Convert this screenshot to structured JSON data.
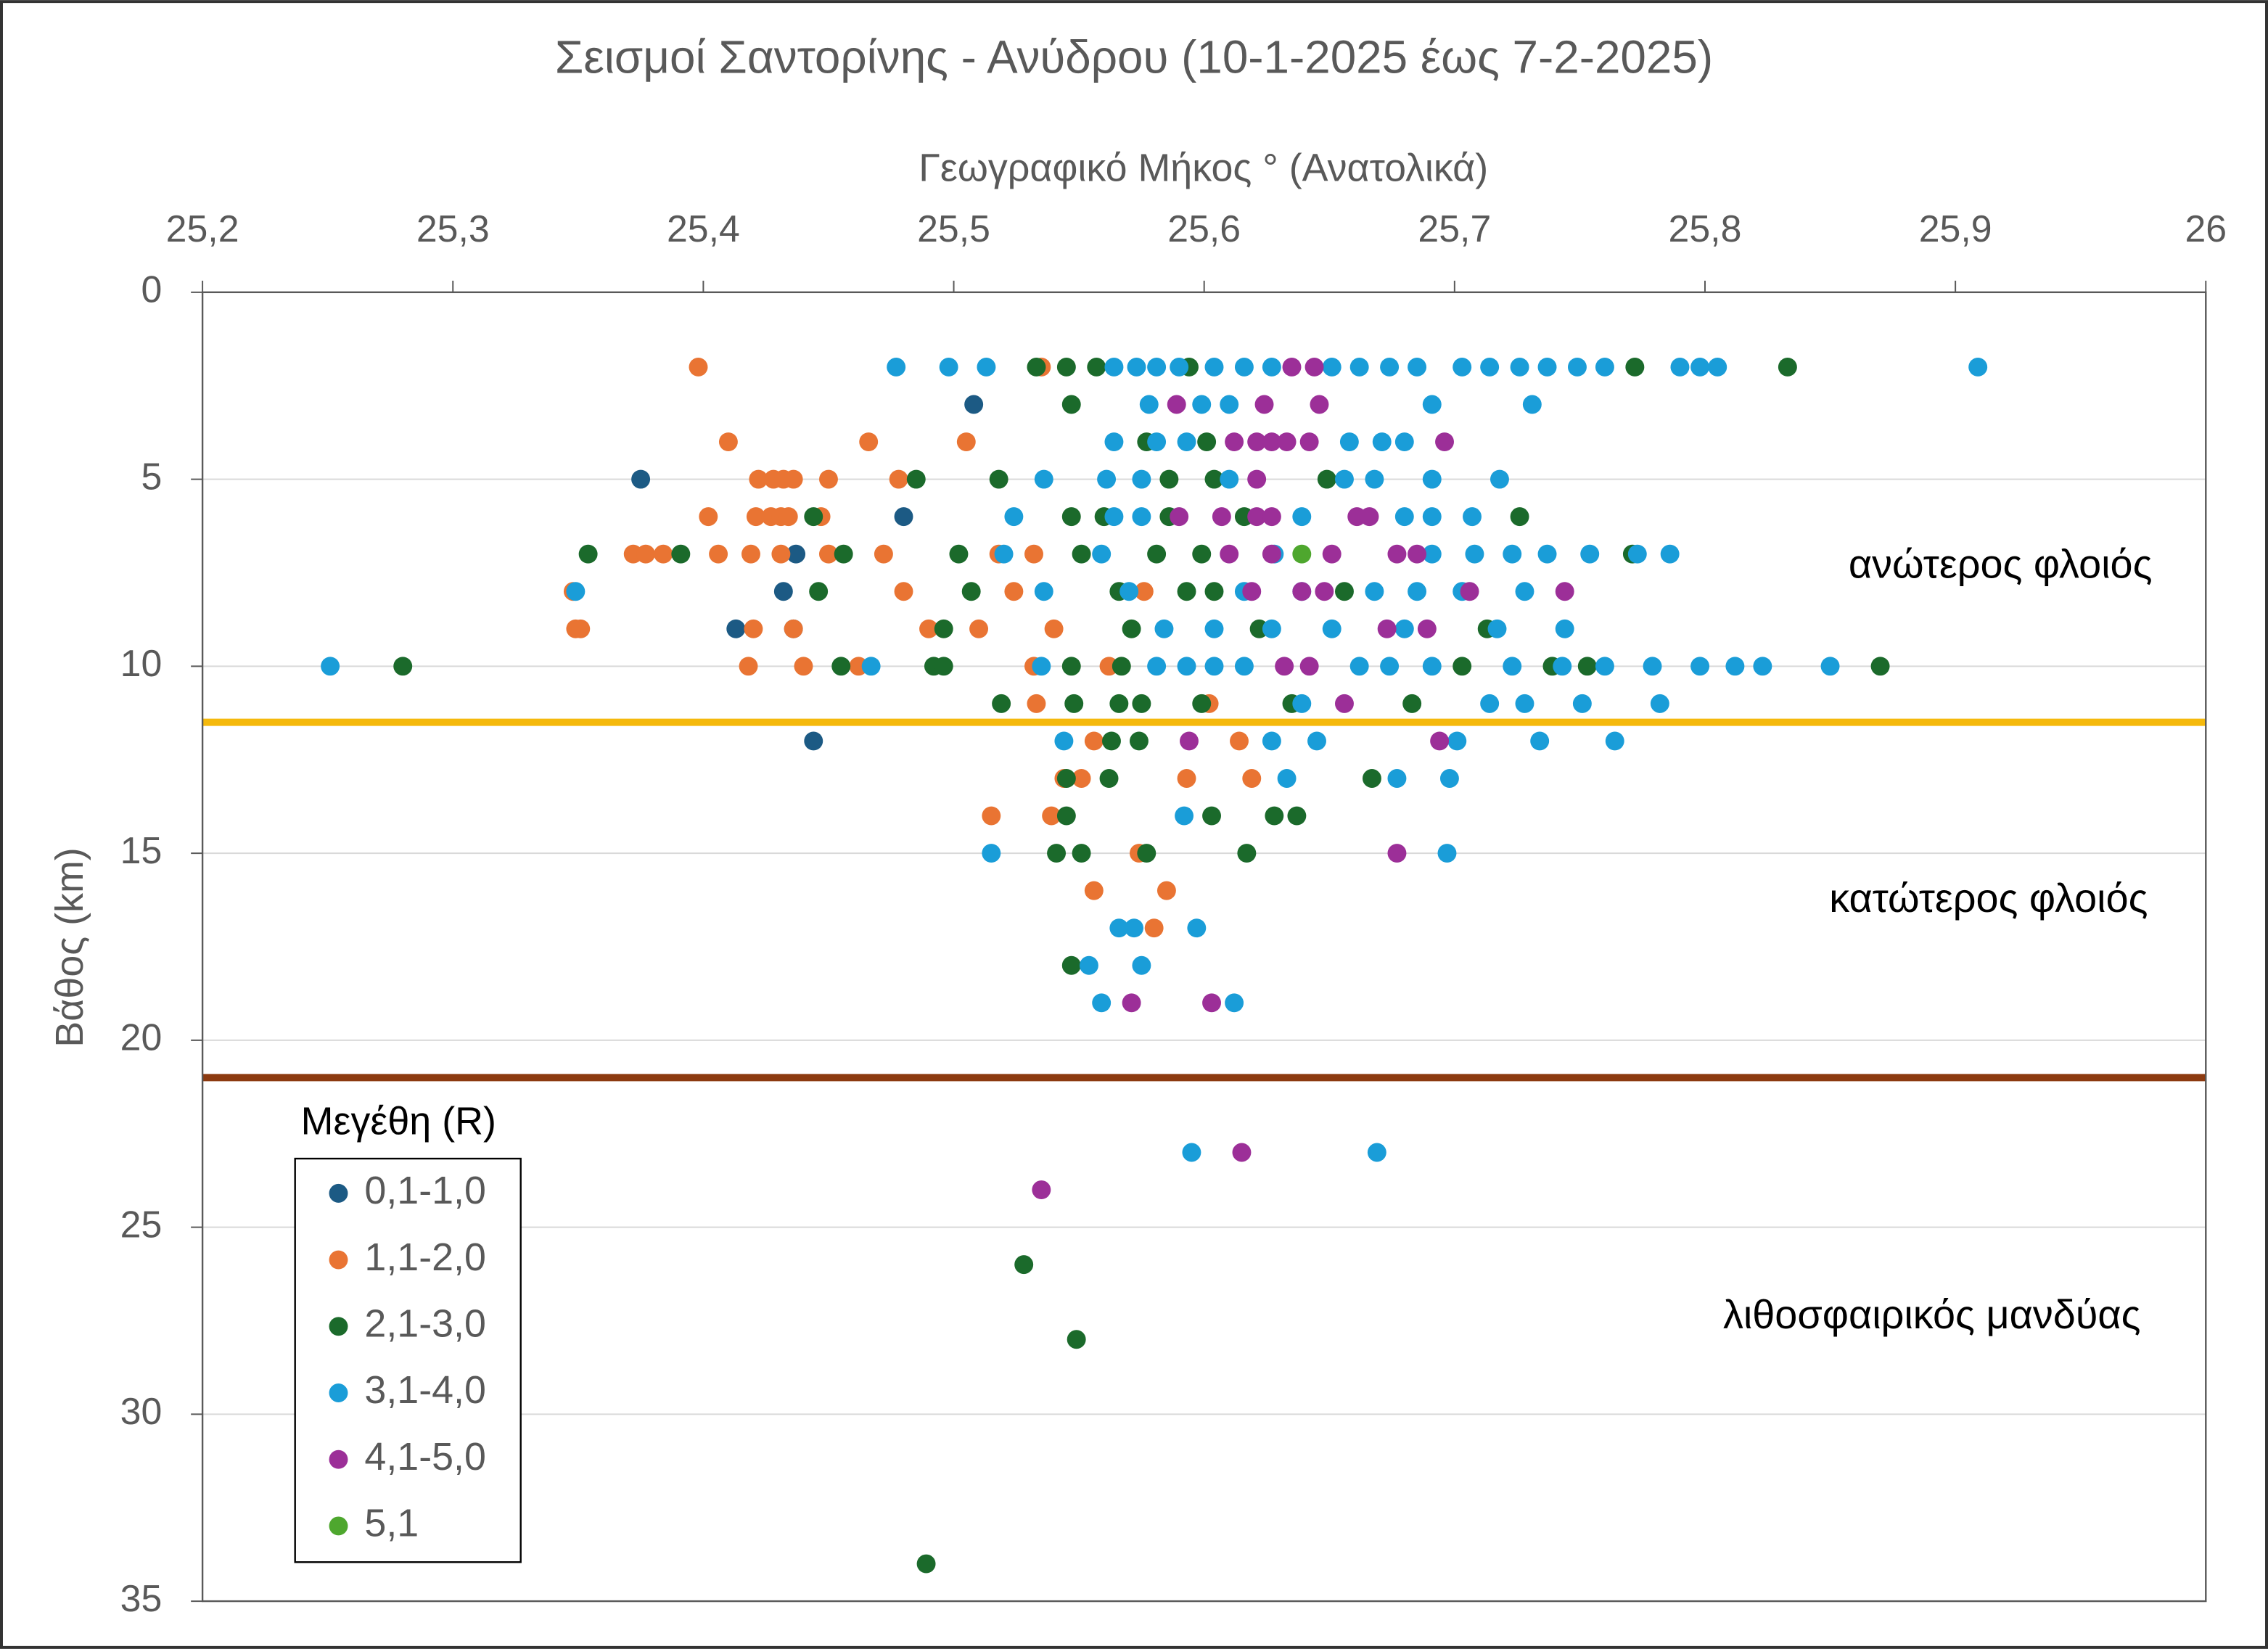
{
  "chart_data": {
    "type": "scatter",
    "title": "Σεισμοί Σαντορίνης - Ανύδρου (10-1-2025 έως 7-2-2025)",
    "x_label": "Γεωγραφικό Μήκος ° (Ανατολικά)",
    "y_label": "Βάθος (km)",
    "x_axis_position": "top",
    "y_reversed": true,
    "grid": true,
    "xlim": [
      25.2,
      26
    ],
    "ylim": [
      0,
      35
    ],
    "xticks": [
      {
        "value": 25.2,
        "label": "25,2"
      },
      {
        "value": 25.3,
        "label": "25,3"
      },
      {
        "value": 25.4,
        "label": "25,4"
      },
      {
        "value": 25.5,
        "label": "25,5"
      },
      {
        "value": 25.6,
        "label": "25,6"
      },
      {
        "value": 25.7,
        "label": "25,7"
      },
      {
        "value": 25.8,
        "label": "25,8"
      },
      {
        "value": 25.9,
        "label": "25,9"
      },
      26
    ],
    "yticks": [
      0,
      5,
      10,
      15,
      20,
      25,
      30,
      35
    ],
    "reference_lines": [
      {
        "value": 11.5,
        "color": "#f5b90c"
      },
      {
        "value": 21,
        "color": "#8c3a10"
      }
    ],
    "annotations": [
      "ανώτερος φλοιός",
      "κατώτερος φλοιός",
      "λιθοσφαιρικός μανδύας"
    ],
    "legend_title": "Μεγέθη (R)",
    "legend_position": "lower left",
    "series": [
      {
        "name": "0,1-1,0",
        "color": "#1c5a84",
        "x": [
          25.375,
          25.437,
          25.48,
          25.508,
          25.432,
          25.413,
          25.436,
          25.444
        ],
        "values": [
          5,
          7,
          6,
          3,
          8,
          9,
          9,
          12
        ]
      },
      {
        "name": "1,1-2,0",
        "color": "#e97433",
        "x": [
          25.398,
          25.535,
          25.41,
          25.466,
          25.505,
          25.422,
          25.428,
          25.432,
          25.436,
          25.45,
          25.478,
          25.402,
          25.421,
          25.427,
          25.431,
          25.434,
          25.447,
          25.372,
          25.377,
          25.384,
          25.406,
          25.419,
          25.431,
          25.45,
          25.472,
          25.518,
          25.532,
          25.348,
          25.48,
          25.524,
          25.576,
          25.349,
          25.351,
          25.42,
          25.436,
          25.49,
          25.51,
          25.54,
          25.418,
          25.44,
          25.462,
          25.532,
          25.562,
          25.533,
          25.602,
          25.556,
          25.614,
          25.544,
          25.551,
          25.593,
          25.619,
          25.515,
          25.539,
          25.574,
          25.556,
          25.585,
          25.58
        ],
        "values": [
          2,
          2,
          4,
          4,
          4,
          5,
          5,
          5,
          5,
          5,
          5,
          6,
          6,
          6,
          6,
          6,
          6,
          7,
          7,
          7,
          7,
          7,
          7,
          7,
          7,
          7,
          7,
          8,
          8,
          8,
          8,
          9,
          9,
          9,
          9,
          9,
          9,
          9,
          10,
          10,
          10,
          10,
          10,
          11,
          11,
          12,
          12,
          13,
          13,
          13,
          13,
          14,
          14,
          15,
          16,
          16,
          17
        ]
      },
      {
        "name": "2,1-3,0",
        "color": "#1b6a2b",
        "x": [
          25.533,
          25.545,
          25.557,
          25.594,
          25.772,
          25.833,
          25.547,
          25.577,
          25.601,
          25.485,
          25.518,
          25.586,
          25.604,
          25.649,
          25.444,
          25.547,
          25.56,
          25.586,
          25.616,
          25.726,
          25.354,
          25.391,
          25.456,
          25.502,
          25.551,
          25.581,
          25.599,
          25.771,
          25.446,
          25.507,
          25.566,
          25.593,
          25.604,
          25.656,
          25.496,
          25.571,
          25.622,
          25.713,
          25.28,
          25.455,
          25.492,
          25.496,
          25.547,
          25.567,
          25.703,
          25.739,
          25.753,
          25.87,
          25.519,
          25.548,
          25.566,
          25.575,
          25.599,
          25.635,
          25.683,
          25.563,
          25.574,
          25.545,
          25.562,
          25.667,
          25.545,
          25.603,
          25.628,
          25.637,
          25.541,
          25.551,
          25.577,
          25.617,
          25.547,
          25.528,
          25.549,
          25.489
        ],
        "values": [
          2,
          2,
          2,
          2,
          2,
          2,
          3,
          4,
          4,
          5,
          5,
          5,
          5,
          5,
          6,
          6,
          6,
          6,
          6,
          6,
          7,
          7,
          7,
          7,
          7,
          7,
          7,
          7,
          8,
          8,
          8,
          8,
          8,
          8,
          9,
          9,
          9,
          9,
          10,
          10,
          10,
          10,
          10,
          10,
          10,
          10,
          10,
          10,
          11,
          11,
          11,
          11,
          11,
          11,
          11,
          12,
          12,
          13,
          13,
          13,
          14,
          14,
          14,
          14,
          15,
          15,
          15,
          15,
          18,
          26,
          28,
          34
        ]
      },
      {
        "name": "3,1-4,0",
        "color": "#1a9dd8",
        "x": [
          25.477,
          25.498,
          25.513,
          25.564,
          25.573,
          25.581,
          25.59,
          25.604,
          25.616,
          25.627,
          25.651,
          25.662,
          25.674,
          25.685,
          25.703,
          25.714,
          25.726,
          25.737,
          25.749,
          25.76,
          25.79,
          25.798,
          25.805,
          25.909,
          25.578,
          25.599,
          25.61,
          25.691,
          25.731,
          25.564,
          25.581,
          25.593,
          25.658,
          25.671,
          25.68,
          25.536,
          25.561,
          25.575,
          25.61,
          25.656,
          25.668,
          25.691,
          25.718,
          25.524,
          25.564,
          25.575,
          25.639,
          25.68,
          25.691,
          25.707,
          25.52,
          25.559,
          25.628,
          25.691,
          25.708,
          25.723,
          25.737,
          25.754,
          25.773,
          25.786,
          25.349,
          25.536,
          25.57,
          25.616,
          25.639,
          25.668,
          25.685,
          25.703,
          25.728,
          25.584,
          25.604,
          25.627,
          25.651,
          25.68,
          25.717,
          25.744,
          25.251,
          25.467,
          25.535,
          25.581,
          25.593,
          25.604,
          25.616,
          25.662,
          25.674,
          25.691,
          25.723,
          25.743,
          25.76,
          25.779,
          25.798,
          25.812,
          25.823,
          25.85,
          25.639,
          25.714,
          25.728,
          25.751,
          25.782,
          25.544,
          25.627,
          25.645,
          25.701,
          25.734,
          25.764,
          25.633,
          25.677,
          25.698,
          25.592,
          25.515,
          25.697,
          25.566,
          25.572,
          25.597,
          25.554,
          25.575,
          25.559,
          25.612,
          25.595,
          25.669
        ],
        "values": [
          2,
          2,
          2,
          2,
          2,
          2,
          2,
          2,
          2,
          2,
          2,
          2,
          2,
          2,
          2,
          2,
          2,
          2,
          2,
          2,
          2,
          2,
          2,
          2,
          3,
          3,
          3,
          3,
          3,
          4,
          4,
          4,
          4,
          4,
          4,
          5,
          5,
          5,
          5,
          5,
          5,
          5,
          5,
          6,
          6,
          6,
          6,
          6,
          6,
          6,
          7,
          7,
          7,
          7,
          7,
          7,
          7,
          7,
          7,
          7,
          8,
          8,
          8,
          8,
          8,
          8,
          8,
          8,
          8,
          9,
          9,
          9,
          9,
          9,
          9,
          9,
          10,
          10,
          10,
          10,
          10,
          10,
          10,
          10,
          10,
          10,
          10,
          10,
          10,
          10,
          10,
          10,
          10,
          10,
          11,
          11,
          11,
          11,
          11,
          12,
          12,
          12,
          12,
          12,
          12,
          13,
          13,
          13,
          14,
          15,
          15,
          17,
          17,
          17,
          18,
          18,
          19,
          19,
          23,
          23
        ]
      },
      {
        "name": "4,1-5,0",
        "color": "#9c2f98",
        "x": [
          25.635,
          25.644,
          25.589,
          25.624,
          25.646,
          25.612,
          25.621,
          25.627,
          25.633,
          25.642,
          25.696,
          25.621,
          25.59,
          25.607,
          25.621,
          25.627,
          25.661,
          25.666,
          25.61,
          25.627,
          25.651,
          25.677,
          25.685,
          25.619,
          25.639,
          25.648,
          25.706,
          25.744,
          25.673,
          25.689,
          25.632,
          25.642,
          25.656,
          25.594,
          25.694,
          25.677,
          25.571,
          25.603,
          25.615,
          25.535
        ],
        "values": [
          2,
          2,
          3,
          3,
          3,
          4,
          4,
          4,
          4,
          4,
          4,
          5,
          6,
          6,
          6,
          6,
          6,
          6,
          7,
          7,
          7,
          7,
          7,
          8,
          8,
          8,
          8,
          8,
          9,
          9,
          10,
          10,
          11,
          12,
          12,
          15,
          19,
          19,
          23,
          24
        ]
      },
      {
        "name": "5,1",
        "color": "#4ea72e",
        "x": [
          25.639
        ],
        "values": [
          7
        ]
      }
    ]
  }
}
